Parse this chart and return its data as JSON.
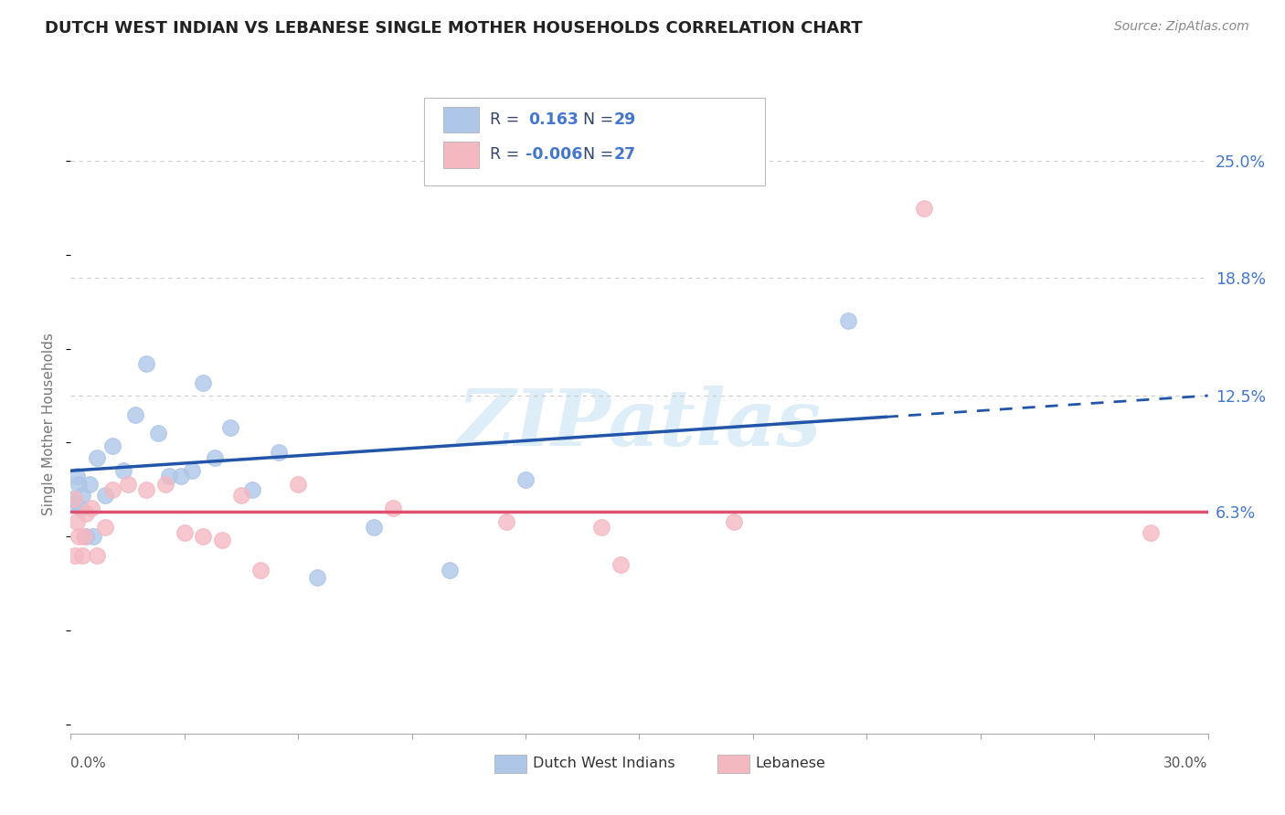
{
  "title": "DUTCH WEST INDIAN VS LEBANESE SINGLE MOTHER HOUSEHOLDS CORRELATION CHART",
  "source": "Source: ZipAtlas.com",
  "ylabel": "Single Mother Households",
  "y_tick_labels": [
    "6.3%",
    "12.5%",
    "18.8%",
    "25.0%"
  ],
  "y_tick_values": [
    6.3,
    12.5,
    18.8,
    25.0
  ],
  "x_lim": [
    0.0,
    30.0
  ],
  "y_lim": [
    -5.5,
    27.5
  ],
  "blue_scatter_x": [
    0.15,
    0.2,
    0.3,
    0.4,
    0.5,
    0.7,
    0.9,
    1.1,
    1.4,
    1.7,
    2.0,
    2.3,
    2.6,
    2.9,
    3.2,
    3.5,
    3.8,
    4.2,
    4.8,
    5.5,
    6.5,
    8.0,
    10.0,
    12.0,
    0.05,
    0.1,
    0.25,
    0.6,
    20.5
  ],
  "blue_scatter_y": [
    8.2,
    7.8,
    7.2,
    5.0,
    7.8,
    9.2,
    7.2,
    9.8,
    8.5,
    11.5,
    14.2,
    10.5,
    8.2,
    8.2,
    8.5,
    13.2,
    9.2,
    10.8,
    7.5,
    9.5,
    2.8,
    5.5,
    3.2,
    8.0,
    7.0,
    6.8,
    6.5,
    5.0,
    16.5
  ],
  "pink_scatter_x": [
    0.1,
    0.15,
    0.2,
    0.3,
    0.4,
    0.55,
    0.7,
    0.9,
    1.1,
    1.5,
    2.0,
    2.5,
    3.0,
    3.5,
    4.0,
    4.5,
    5.0,
    6.0,
    8.5,
    11.5,
    14.5,
    17.5,
    14.0,
    22.5,
    0.12,
    0.35,
    28.5
  ],
  "pink_scatter_y": [
    7.0,
    5.8,
    5.0,
    4.0,
    6.2,
    6.5,
    4.0,
    5.5,
    7.5,
    7.8,
    7.5,
    7.8,
    5.2,
    5.0,
    4.8,
    7.2,
    3.2,
    7.8,
    6.5,
    5.8,
    3.5,
    5.8,
    5.5,
    22.5,
    4.0,
    5.0,
    5.2
  ],
  "blue_scatter_color": "#aec6e8",
  "pink_scatter_color": "#f4b8c1",
  "blue_line_color": "#2255aa",
  "pink_line_color": "#e05070",
  "grid_color": "#cccccc",
  "background_color": "#ffffff",
  "watermark": "ZIPatlas",
  "watermark_color": "#ddeef8",
  "blue_line_y_at_0": 8.5,
  "blue_line_y_at_30": 12.5,
  "pink_line_y": 6.3,
  "blue_dashed_start_x": 21.5,
  "legend_text_color": "#334466",
  "legend_num_color": "#4477cc"
}
